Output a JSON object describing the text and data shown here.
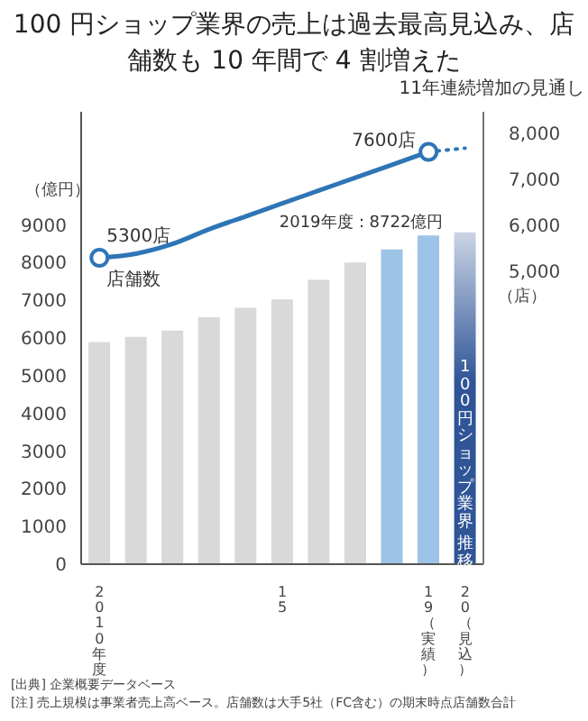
{
  "chart_data": {
    "type": "bar",
    "title": "100 円ショップ業界の売上は過去最高見込み、店舗数も 10 年間で 4 割増えた",
    "categories": [
      "2010年度",
      null,
      null,
      null,
      null,
      "15",
      null,
      null,
      null,
      "19（実績）",
      "20（見込）"
    ],
    "ylabel": "（億円）",
    "y2label": "（店）",
    "ylim": [
      0,
      12000
    ],
    "yticks": [
      0,
      1000,
      2000,
      3000,
      4000,
      5000,
      6000,
      7000,
      8000,
      9000
    ],
    "y2lim": [
      -1350,
      8470
    ],
    "y2ticks": [
      {
        "value": 5000,
        "label": "5,000"
      },
      {
        "value": 6000,
        "label": "6,000"
      },
      {
        "value": 7000,
        "label": "7,000"
      },
      {
        "value": 8000,
        "label": "8,000"
      }
    ],
    "marker": "circle",
    "series": [
      {
        "values": [
          5890,
          6030,
          6200,
          6550,
          6800,
          7020,
          7540,
          8000,
          8350,
          8722,
          8800
        ],
        "colors": [
          "#d9d9d9",
          "#d9d9d9",
          "#d9d9d9",
          "#d9d9d9",
          "#d9d9d9",
          "#d9d9d9",
          "#d9d9d9",
          "#d9d9d9",
          "#9dc3e6",
          "#9dc3e6",
          "#2f5597"
        ]
      },
      {
        "type": "line",
        "name": "店舗数",
        "axis": "y2",
        "color": "#2e75b6",
        "marker": "none",
        "values": [
          5300,
          5390,
          5600,
          5920,
          6200,
          6480,
          6760,
          7040,
          7320,
          7600,
          null
        ]
      },
      {
        "type": "line",
        "axis": "y2",
        "color": "#2e75b6",
        "marker": "none",
        "line_style": "dotted",
        "values": [
          null,
          null,
          null,
          null,
          null,
          null,
          null,
          null,
          null,
          7600,
          7680
        ]
      },
      {
        "type": "scatter",
        "axis": "y2",
        "color": "#2e75b6",
        "values": [
          5300,
          null,
          null,
          null,
          null,
          null,
          null,
          null,
          null,
          7600,
          null
        ],
        "value_labels": [
          "5300店",
          null,
          null,
          null,
          null,
          null,
          null,
          null,
          null,
          "7600店",
          null
        ]
      }
    ],
    "annotations": [
      "11年連続増加の見通し",
      "100円ショップ業界",
      "推移",
      {
        "text": "2019年度：8722億円",
        "x": "19（実績）",
        "y": 8722
      },
      "[出典] 企業概要データベース",
      "[注] 売上規模は事業者売上高ベース。店舗数は大手5社（FC含む）の期末時点店舗数合計"
    ]
  }
}
